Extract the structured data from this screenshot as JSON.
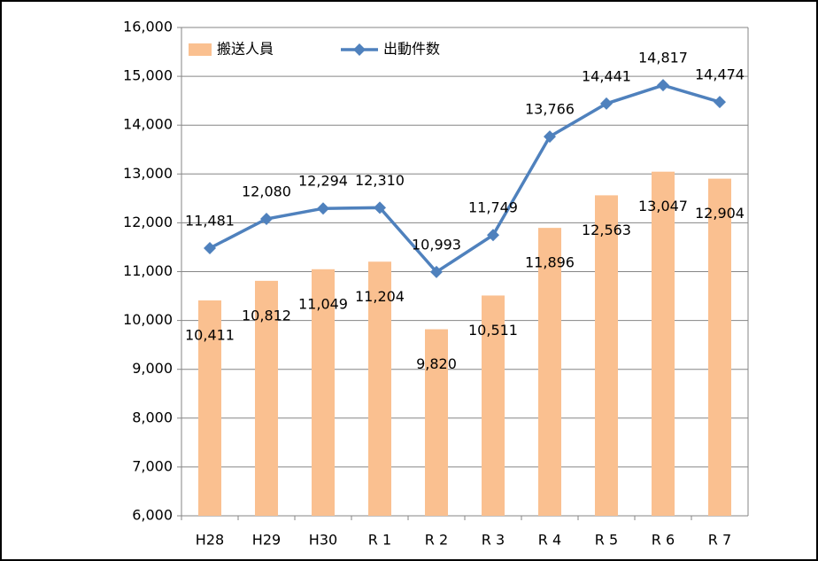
{
  "chart_data": {
    "type": "bar",
    "categories": [
      "H28",
      "H29",
      "H30",
      "R 1",
      "R 2",
      "R 3",
      "R 4",
      "R 5",
      "R 6",
      "R 7"
    ],
    "series": [
      {
        "name": "搬送人員",
        "type": "bar",
        "color": "#fac090",
        "values": [
          10411,
          10812,
          11049,
          11204,
          9820,
          10511,
          11896,
          12563,
          13047,
          12904
        ],
        "value_labels": [
          "10,411",
          "10,812",
          "11,049",
          "11,204",
          "9,820",
          "10,511",
          "11,896",
          "12,563",
          "13,047",
          "12,904"
        ]
      },
      {
        "name": "出動件数",
        "type": "line",
        "color": "#4f81bd",
        "values": [
          11481,
          12080,
          12294,
          12310,
          10993,
          11749,
          13766,
          14441,
          14817,
          14474
        ],
        "value_labels": [
          "11,481",
          "12,080",
          "12,294",
          "12,310",
          "10,993",
          "11,749",
          "13,766",
          "14,441",
          "14,817",
          "14,474"
        ]
      }
    ],
    "ylim": [
      6000,
      16000
    ],
    "yticks": [
      {
        "value": 6000,
        "label": "6,000"
      },
      {
        "value": 7000,
        "label": "7,000"
      },
      {
        "value": 8000,
        "label": "8,000"
      },
      {
        "value": 9000,
        "label": "9,000"
      },
      {
        "value": 10000,
        "label": "10,000"
      },
      {
        "value": 11000,
        "label": "11,000"
      },
      {
        "value": 12000,
        "label": "12,000"
      },
      {
        "value": 13000,
        "label": "13,000"
      },
      {
        "value": 14000,
        "label": "14,000"
      },
      {
        "value": 15000,
        "label": "15,000"
      },
      {
        "value": 16000,
        "label": "16,000"
      }
    ],
    "grid": true,
    "legend": "top-left"
  }
}
